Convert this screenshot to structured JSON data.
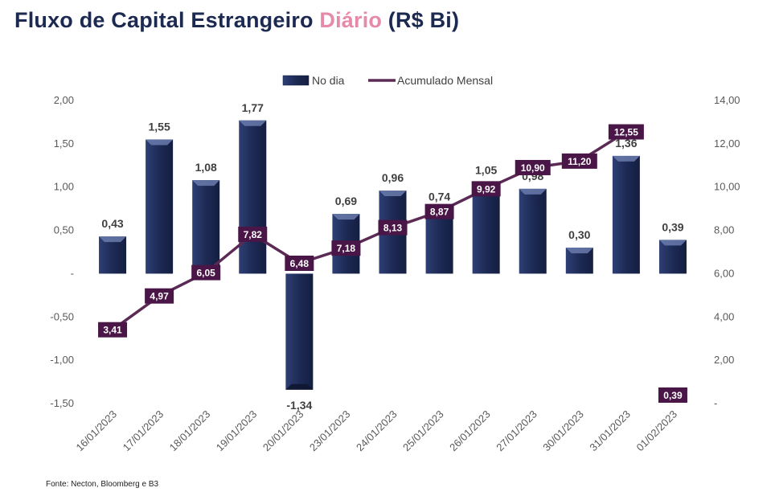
{
  "title": {
    "main": "Fluxo de Capital Estrangeiro ",
    "highlight": "Diário",
    "suffix": " (R$ Bi)"
  },
  "source": "Fonte: Necton, Bloomberg e B3",
  "colors": {
    "title": "#1c2951",
    "highlight": "#e58aa8",
    "bar": "#1f2d5a",
    "line": "#5b2a55",
    "label_box": "#4a1547"
  },
  "chart_data": {
    "type": "bar",
    "categories": [
      "16/01/2023",
      "17/01/2023",
      "18/01/2023",
      "19/01/2023",
      "20/01/2023",
      "23/01/2023",
      "24/01/2023",
      "25/01/2023",
      "26/01/2023",
      "27/01/2023",
      "30/01/2023",
      "31/01/2023",
      "01/02/2023"
    ],
    "series": [
      {
        "name": "No dia",
        "type": "bar",
        "axis": "left",
        "values": [
          0.43,
          1.55,
          1.08,
          1.77,
          -1.34,
          0.69,
          0.96,
          0.74,
          1.05,
          0.98,
          0.3,
          1.36,
          0.39
        ],
        "labels": [
          "0,43",
          "1,55",
          "1,08",
          "1,77",
          "-1,34",
          "0,69",
          "0,96",
          "0,74",
          "1,05",
          "0,98",
          "0,30",
          "1,36",
          "0,39"
        ]
      },
      {
        "name": "Acumulado Mensal",
        "type": "line",
        "axis": "right",
        "values": [
          3.41,
          4.97,
          6.05,
          7.82,
          6.48,
          7.18,
          8.13,
          8.87,
          9.92,
          10.9,
          11.2,
          12.55,
          0.39
        ],
        "labels": [
          "3,41",
          "4,97",
          "6,05",
          "7,82",
          "6,48",
          "7,18",
          "8,13",
          "8,87",
          "9,92",
          "10,90",
          "11,20",
          "12,55",
          "0,39"
        ]
      }
    ],
    "left_axis": {
      "range": [
        -1.5,
        2.0
      ],
      "ticks": [
        2.0,
        1.5,
        1.0,
        0.5,
        0,
        -0.5,
        -1.0,
        -1.5
      ],
      "tick_labels": [
        "2,00",
        "1,50",
        "1,00",
        "0,50",
        "-",
        "-0,50",
        "-1,00",
        "-1,50"
      ]
    },
    "right_axis": {
      "range": [
        0,
        14
      ],
      "ticks": [
        14,
        12,
        10,
        8,
        6,
        4,
        2,
        0
      ],
      "tick_labels": [
        "14,00",
        "12,00",
        "10,00",
        "8,00",
        "6,00",
        "4,00",
        "2,00",
        "-"
      ]
    },
    "legend": {
      "position": "top-center"
    },
    "grid": false
  }
}
